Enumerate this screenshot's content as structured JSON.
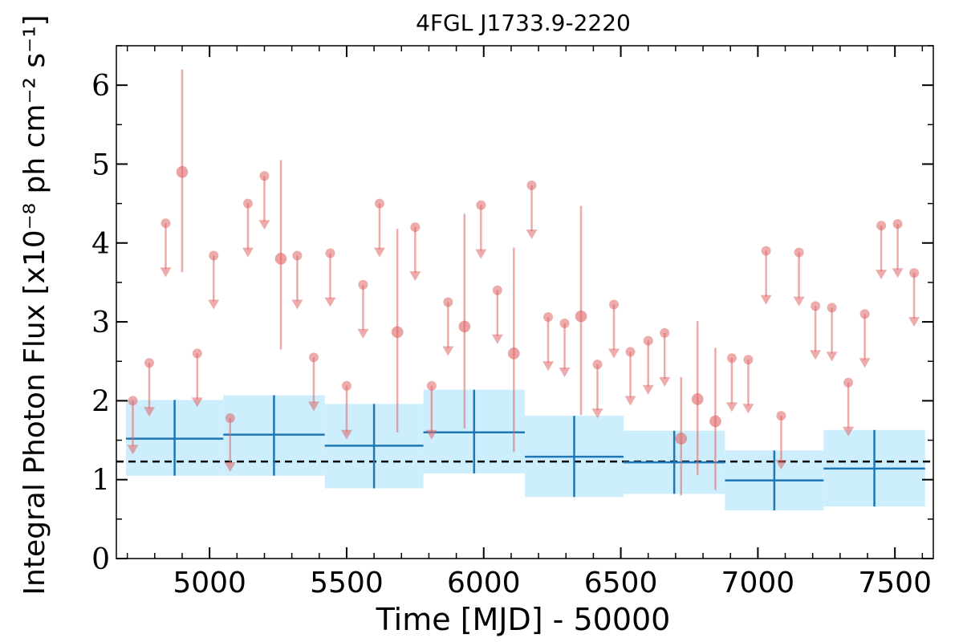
{
  "chart_data": {
    "type": "scatter",
    "title": "4FGL J1733.9-2220",
    "xlabel": "Time [MJD] - 50000",
    "ylabel": "Integral Photon Flux [x10⁻⁸ ph cm⁻² s⁻¹]",
    "xlim": [
      4660,
      7640
    ],
    "ylim": [
      0,
      6.5
    ],
    "xticks": [
      5000,
      5500,
      6000,
      6500,
      7000,
      7500
    ],
    "yticks": [
      0,
      1,
      2,
      3,
      4,
      5,
      6
    ],
    "grid": false,
    "average_flux": 1.23,
    "colors": {
      "detections": "#e06666",
      "upper_limits": "#e06666",
      "long_bins": "#1f77b4",
      "long_bin_band": "#cdeefd",
      "average_line": "#000000"
    },
    "upper_limits": [
      {
        "x": 4720,
        "y": 2.0
      },
      {
        "x": 4780,
        "y": 2.48
      },
      {
        "x": 4840,
        "y": 4.25
      },
      {
        "x": 4955,
        "y": 2.6
      },
      {
        "x": 5015,
        "y": 3.84
      },
      {
        "x": 5075,
        "y": 1.78
      },
      {
        "x": 5140,
        "y": 4.5
      },
      {
        "x": 5200,
        "y": 4.85
      },
      {
        "x": 5320,
        "y": 3.84
      },
      {
        "x": 5380,
        "y": 2.55
      },
      {
        "x": 5440,
        "y": 3.87
      },
      {
        "x": 5500,
        "y": 2.19
      },
      {
        "x": 5560,
        "y": 3.47
      },
      {
        "x": 5620,
        "y": 4.5
      },
      {
        "x": 5750,
        "y": 4.2
      },
      {
        "x": 5810,
        "y": 2.19
      },
      {
        "x": 5870,
        "y": 3.25
      },
      {
        "x": 5990,
        "y": 4.48
      },
      {
        "x": 6050,
        "y": 3.4
      },
      {
        "x": 6175,
        "y": 4.73
      },
      {
        "x": 6235,
        "y": 3.06
      },
      {
        "x": 6295,
        "y": 2.98
      },
      {
        "x": 6415,
        "y": 2.46
      },
      {
        "x": 6475,
        "y": 3.22
      },
      {
        "x": 6535,
        "y": 2.62
      },
      {
        "x": 6600,
        "y": 2.76
      },
      {
        "x": 6660,
        "y": 2.86
      },
      {
        "x": 6905,
        "y": 2.54
      },
      {
        "x": 6965,
        "y": 2.52
      },
      {
        "x": 7030,
        "y": 3.9
      },
      {
        "x": 7085,
        "y": 1.81
      },
      {
        "x": 7150,
        "y": 3.88
      },
      {
        "x": 7210,
        "y": 3.2
      },
      {
        "x": 7270,
        "y": 3.18
      },
      {
        "x": 7330,
        "y": 2.23
      },
      {
        "x": 7390,
        "y": 3.1
      },
      {
        "x": 7450,
        "y": 4.22
      },
      {
        "x": 7510,
        "y": 4.24
      },
      {
        "x": 7570,
        "y": 3.62
      }
    ],
    "detections": [
      {
        "x": 4900,
        "y": 4.9,
        "lo": 3.63,
        "hi": 6.2
      },
      {
        "x": 5260,
        "y": 3.8,
        "lo": 2.65,
        "hi": 5.05
      },
      {
        "x": 5685,
        "y": 2.87,
        "lo": 1.6,
        "hi": 4.18
      },
      {
        "x": 5930,
        "y": 2.94,
        "lo": 1.65,
        "hi": 4.37
      },
      {
        "x": 6110,
        "y": 2.6,
        "lo": 1.35,
        "hi": 3.94
      },
      {
        "x": 6355,
        "y": 3.07,
        "lo": 1.82,
        "hi": 4.47
      },
      {
        "x": 6720,
        "y": 1.52,
        "lo": 0.8,
        "hi": 2.3
      },
      {
        "x": 6780,
        "y": 2.02,
        "lo": 1.06,
        "hi": 3.01
      },
      {
        "x": 6845,
        "y": 1.74,
        "lo": 0.87,
        "hi": 2.67
      }
    ],
    "long_bins": [
      {
        "x0": 4695,
        "x1": 5050,
        "y": 1.52,
        "lo": 1.05,
        "hi": 2.01
      },
      {
        "x0": 5050,
        "x1": 5420,
        "y": 1.57,
        "lo": 1.05,
        "hi": 2.07
      },
      {
        "x0": 5420,
        "x1": 5780,
        "y": 1.43,
        "lo": 0.89,
        "hi": 1.96
      },
      {
        "x0": 5780,
        "x1": 6150,
        "y": 1.6,
        "lo": 1.08,
        "hi": 2.14
      },
      {
        "x0": 6150,
        "x1": 6510,
        "y": 1.29,
        "lo": 0.78,
        "hi": 1.81
      },
      {
        "x0": 6510,
        "x1": 6880,
        "y": 1.22,
        "lo": 0.82,
        "hi": 1.62
      },
      {
        "x0": 6880,
        "x1": 7240,
        "y": 0.99,
        "lo": 0.61,
        "hi": 1.37
      },
      {
        "x0": 7240,
        "x1": 7610,
        "y": 1.14,
        "lo": 0.66,
        "hi": 1.63
      }
    ]
  }
}
